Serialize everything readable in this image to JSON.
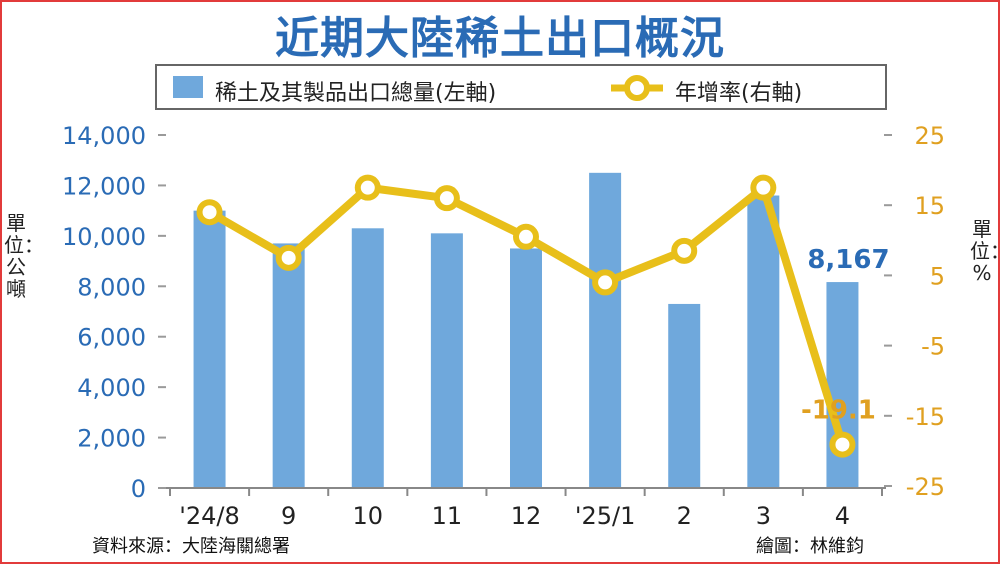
{
  "title": "近期大陸稀土出口概況",
  "legend": {
    "bar_label": "稀土及其製品出口總量(左軸)",
    "line_label": "年增率(右軸)"
  },
  "units": {
    "left": "單位：公噸",
    "right": "單位：%"
  },
  "footer": {
    "source": "資料來源：大陸海關總署",
    "credit": "繪圖：林維鈞"
  },
  "colors": {
    "bar": "#6fa8dc",
    "line": "#e8bf1a",
    "left_axis_text": "#2a6bb5",
    "right_axis_text": "#e0a020",
    "title": "#2a6bb5",
    "border": "#e23b3b"
  },
  "chart_data": {
    "type": "bar",
    "categories": [
      "'24/8",
      "9",
      "10",
      "11",
      "12",
      "'25/1",
      "2",
      "3",
      "4"
    ],
    "series": [
      {
        "name": "稀土及其製品出口總量(左軸)",
        "type": "bar",
        "axis": "left",
        "values": [
          11000,
          9700,
          10300,
          10100,
          9500,
          12500,
          7300,
          11600,
          8167
        ]
      },
      {
        "name": "年增率(右軸)",
        "type": "line",
        "axis": "right",
        "values": [
          14,
          7.5,
          17.5,
          16,
          10.5,
          4,
          8.5,
          17.5,
          -19.1
        ]
      }
    ],
    "y_left": {
      "ylim": [
        0,
        14000
      ],
      "ticks": [
        0,
        2000,
        4000,
        6000,
        8000,
        10000,
        12000,
        14000
      ],
      "tick_labels": [
        "0",
        "2,000",
        "4,000",
        "6,000",
        "8,000",
        "10,000",
        "12,000",
        "14,000"
      ]
    },
    "y_right": {
      "ylim": [
        -25,
        25
      ],
      "ticks": [
        -25,
        -15,
        -5,
        5,
        15,
        25
      ],
      "tick_labels": [
        "-25",
        "-15",
        "-5",
        "5",
        "15",
        "25"
      ]
    },
    "annotations": [
      {
        "text": "8,167",
        "series": "bar",
        "index": 8
      },
      {
        "text": "-19.1",
        "series": "line",
        "index": 8
      }
    ],
    "legend_position": "top",
    "grid": false
  }
}
